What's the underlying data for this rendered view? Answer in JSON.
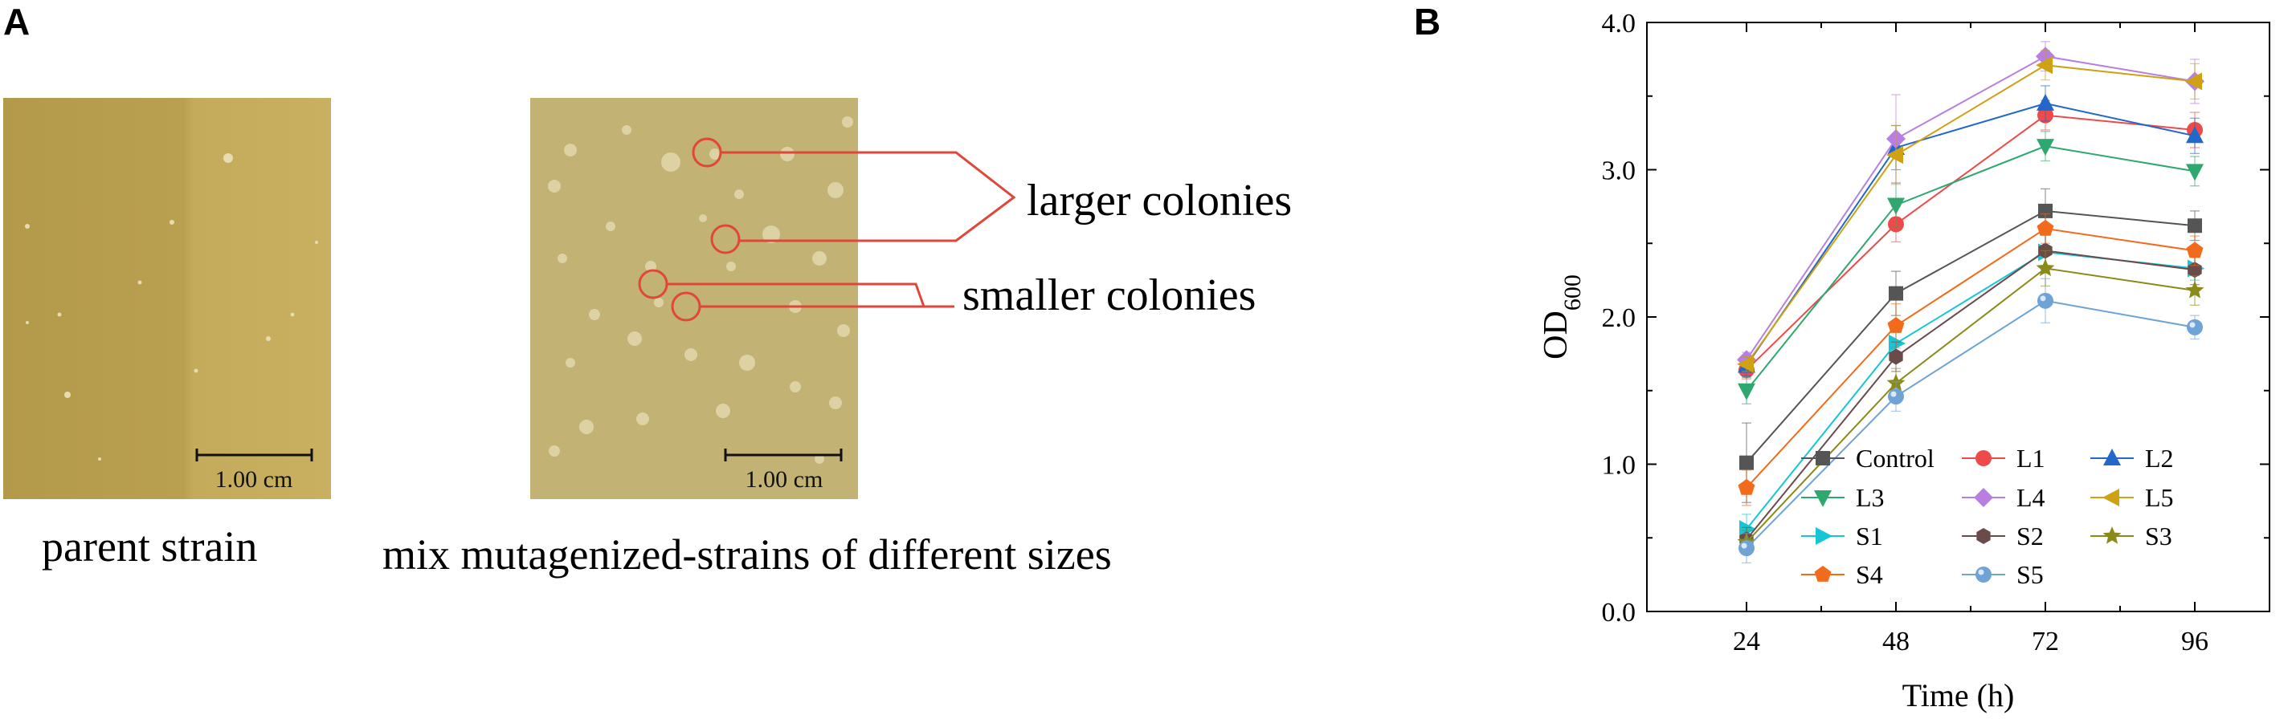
{
  "panel_a": {
    "letter": "A",
    "parent_caption": "parent strain",
    "mix_caption": "mix mutagenized-strains of different sizes",
    "scale_bar_label": "1.00 cm",
    "callout_large": "larger colonies",
    "callout_small": "smaller colonies",
    "colors": {
      "plate_left": "#bfa657",
      "plate_right": "#c8b67a",
      "callout": "#e0473a"
    }
  },
  "panel_b": {
    "letter": "B"
  },
  "chart_data": {
    "type": "line",
    "x": [
      24,
      48,
      72,
      96
    ],
    "xlabel": "Time (h)",
    "ylabel": "OD",
    "ylabel_subscript": "600",
    "xlim": [
      8,
      108
    ],
    "ylim": [
      0.0,
      4.0
    ],
    "yticks": [
      "0.0",
      "1.0",
      "2.0",
      "3.0",
      "4.0"
    ],
    "xticks": [
      "24",
      "48",
      "72",
      "96"
    ],
    "legend_position": "bottom-right",
    "series": [
      {
        "name": "Control",
        "values": [
          1.01,
          2.16,
          2.72,
          2.62
        ],
        "err": [
          0.27,
          0.15,
          0.15,
          0.1
        ],
        "color": "#555555",
        "marker": "square"
      },
      {
        "name": "L1",
        "values": [
          1.64,
          2.63,
          3.37,
          3.27
        ],
        "err": [
          0.06,
          0.12,
          0.1,
          0.12
        ],
        "color": "#ef4a4a",
        "marker": "circle"
      },
      {
        "name": "L2",
        "values": [
          1.67,
          3.15,
          3.45,
          3.23
        ],
        "err": [
          0.07,
          0.15,
          0.12,
          0.12
        ],
        "color": "#2268c9",
        "marker": "triangle-up"
      },
      {
        "name": "L3",
        "values": [
          1.5,
          2.76,
          3.16,
          2.99
        ],
        "err": [
          0.09,
          0.15,
          0.1,
          0.1
        ],
        "color": "#2fa86f",
        "marker": "triangle-down"
      },
      {
        "name": "L4",
        "values": [
          1.71,
          3.21,
          3.77,
          3.6
        ],
        "err": [
          0.05,
          0.3,
          0.1,
          0.15
        ],
        "color": "#b87fe0",
        "marker": "diamond"
      },
      {
        "name": "L5",
        "values": [
          1.68,
          3.1,
          3.71,
          3.6
        ],
        "err": [
          0.05,
          0.2,
          0.1,
          0.12
        ],
        "color": "#cfa114",
        "marker": "triangle-left"
      },
      {
        "name": "S1",
        "values": [
          0.56,
          1.82,
          2.44,
          2.33
        ],
        "err": [
          0.1,
          0.1,
          0.12,
          0.08
        ],
        "color": "#17c6d6",
        "marker": "triangle-right"
      },
      {
        "name": "S2",
        "values": [
          0.49,
          1.73,
          2.45,
          2.32
        ],
        "err": [
          0.08,
          0.1,
          0.15,
          0.1
        ],
        "color": "#6b4a4a",
        "marker": "hexagon"
      },
      {
        "name": "S3",
        "values": [
          0.47,
          1.55,
          2.33,
          2.18
        ],
        "err": [
          0.08,
          0.1,
          0.12,
          0.1
        ],
        "color": "#8a8a1a",
        "marker": "star"
      },
      {
        "name": "S4",
        "values": [
          0.84,
          1.94,
          2.6,
          2.45
        ],
        "err": [
          0.12,
          0.15,
          0.1,
          0.1
        ],
        "color": "#f26b1d",
        "marker": "pentagon"
      },
      {
        "name": "S5",
        "values": [
          0.43,
          1.46,
          2.11,
          1.93
        ],
        "err": [
          0.1,
          0.1,
          0.15,
          0.08
        ],
        "color": "#6fa3d6",
        "marker": "sphere"
      }
    ]
  }
}
